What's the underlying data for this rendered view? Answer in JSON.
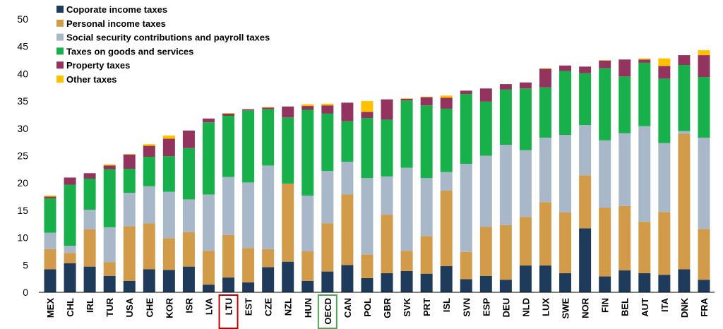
{
  "chart_data": {
    "type": "bar",
    "stacked": true,
    "ylim": [
      0,
      50
    ],
    "yticks": [
      0,
      5,
      10,
      15,
      20,
      25,
      30,
      35,
      40,
      45,
      50
    ],
    "grid": false,
    "legend_position": "top-left",
    "categories": [
      "MEX",
      "CHL",
      "IRL",
      "TUR",
      "USA",
      "CHE",
      "KOR",
      "ISR",
      "LVA",
      "LTU",
      "EST",
      "CZE",
      "NZL",
      "HUN",
      "OECD",
      "CAN",
      "POL",
      "GBR",
      "SVK",
      "PRT",
      "ISL",
      "SVN",
      "ESP",
      "DEU",
      "NLD",
      "LUX",
      "SWE",
      "NOR",
      "FIN",
      "BEL",
      "AUT",
      "ITA",
      "DNK",
      "FRA"
    ],
    "highlighted_categories": [
      {
        "category": "LTU",
        "color": "#C00000"
      },
      {
        "category": "OECD",
        "color": "#4EA55A"
      }
    ],
    "series": [
      {
        "name": "Coporate income taxes",
        "color": "#1F3B5C",
        "values": [
          4.2,
          5.3,
          4.7,
          3.0,
          2.1,
          4.2,
          4.1,
          4.7,
          1.4,
          2.7,
          1.8,
          4.6,
          5.6,
          2.1,
          3.8,
          5.0,
          2.6,
          3.5,
          3.9,
          3.4,
          4.8,
          2.4,
          3.0,
          2.3,
          4.9,
          4.9,
          3.5,
          11.7,
          2.9,
          4.0,
          3.5,
          3.2,
          4.2,
          2.3
        ]
      },
      {
        "name": "Personal income taxes",
        "color": "#D29B4A",
        "values": [
          3.7,
          1.9,
          6.8,
          2.5,
          10.0,
          8.4,
          5.8,
          6.3,
          6.2,
          7.8,
          6.3,
          3.3,
          14.3,
          5.4,
          8.8,
          12.9,
          4.3,
          10.7,
          3.7,
          6.9,
          13.8,
          5.0,
          9.0,
          10.0,
          8.9,
          11.6,
          11.1,
          9.7,
          12.6,
          11.8,
          9.4,
          11.5,
          24.8,
          9.3
        ]
      },
      {
        "name": "Social security contributions and payroll taxes",
        "color": "#A8B8C8",
        "values": [
          3.0,
          1.3,
          3.6,
          6.4,
          6.1,
          6.8,
          8.5,
          6.0,
          10.3,
          10.6,
          12.0,
          15.3,
          0.0,
          10.2,
          9.6,
          6.0,
          14.0,
          7.0,
          15.2,
          10.6,
          3.4,
          16.1,
          13.0,
          14.7,
          12.2,
          11.8,
          14.2,
          9.2,
          12.3,
          13.3,
          17.5,
          12.6,
          0.5,
          16.7
        ]
      },
      {
        "name": "Taxes on goods and services",
        "color": "#17B04A",
        "values": [
          6.3,
          11.2,
          5.7,
          10.6,
          4.4,
          5.4,
          6.5,
          9.4,
          13.2,
          11.2,
          13.2,
          10.3,
          12.1,
          15.7,
          10.5,
          7.4,
          11.0,
          10.4,
          12.3,
          13.3,
          11.6,
          12.8,
          9.9,
          10.1,
          11.3,
          9.2,
          11.7,
          9.5,
          13.2,
          10.4,
          11.6,
          11.8,
          12.1,
          11.1
        ]
      },
      {
        "name": "Property taxes",
        "color": "#92345E",
        "values": [
          0.3,
          1.3,
          1.0,
          0.7,
          2.6,
          2.0,
          3.2,
          3.2,
          0.7,
          0.4,
          0.2,
          0.3,
          2.0,
          0.7,
          1.5,
          3.4,
          1.1,
          3.7,
          0.3,
          1.5,
          2.0,
          0.6,
          2.4,
          1.0,
          1.1,
          3.4,
          1.0,
          1.2,
          1.4,
          3.1,
          0.6,
          2.3,
          1.8,
          4.0
        ]
      },
      {
        "name": "Other taxes",
        "color": "#FFC000",
        "values": [
          0.2,
          0.0,
          0.0,
          0.2,
          0.1,
          0.3,
          0.6,
          0.0,
          0.0,
          0.1,
          0.0,
          0.1,
          0.0,
          0.3,
          0.3,
          0.0,
          2.0,
          0.0,
          0.1,
          0.1,
          0.4,
          0.0,
          0.0,
          0.0,
          0.0,
          0.1,
          0.0,
          0.0,
          0.1,
          0.0,
          0.2,
          1.4,
          0.0,
          0.9
        ]
      }
    ]
  }
}
